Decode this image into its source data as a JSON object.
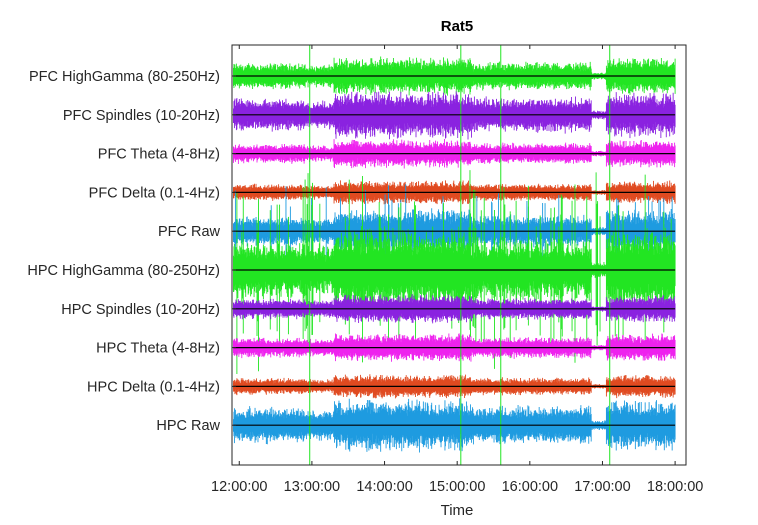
{
  "chart_data": {
    "type": "line",
    "title": "Rat5",
    "xlabel": "Time",
    "ylabel": "",
    "x_ticks": [
      "12:00:00",
      "13:00:00",
      "14:00:00",
      "15:00:00",
      "16:00:00",
      "17:00:00",
      "18:00:00"
    ],
    "xlim_hours": [
      11.9,
      18.15
    ],
    "grid": false,
    "y_tick_labels_top_to_bottom": [
      "PFC HighGamma (80-250Hz)",
      "PFC Spindles (10-20Hz)",
      "PFC Theta (4-8Hz)",
      "PFC Delta (0.1-4Hz)",
      "PFC Raw",
      "HPC HighGamma (80-250Hz)",
      "HPC Spindles (10-20Hz)",
      "HPC Theta (4-8Hz)",
      "HPC Delta (0.1-4Hz)",
      "HPC Raw"
    ],
    "series": [
      {
        "label": "PFC HighGamma (80-250Hz)",
        "color": "#22e522",
        "amp": 0.4
      },
      {
        "label": "PFC Spindles (10-20Hz)",
        "color": "#8a22e0",
        "amp": 0.5
      },
      {
        "label": "PFC Theta (4-8Hz)",
        "color": "#ee22ee",
        "amp": 0.3
      },
      {
        "label": "PFC Delta (0.1-4Hz)",
        "color": "#e04a20",
        "amp": 0.25
      },
      {
        "label": "PFC Raw",
        "color": "#1e9be0",
        "amp": 0.45
      },
      {
        "label": "HPC HighGamma (80-250Hz)",
        "color": "#22e522",
        "amp": 0.9
      },
      {
        "label": "HPC Spindles (10-20Hz)",
        "color": "#8a22e0",
        "amp": 0.3
      },
      {
        "label": "HPC Theta (4-8Hz)",
        "color": "#ee22ee",
        "amp": 0.3
      },
      {
        "label": "HPC Delta (0.1-4Hz)",
        "color": "#e04a20",
        "amp": 0.25
      },
      {
        "label": "HPC Raw",
        "color": "#1e9be0",
        "amp": 0.55
      }
    ],
    "baseline_color": "#000000",
    "spike_times_hours": [
      12.97,
      15.05,
      15.6,
      17.1
    ]
  }
}
